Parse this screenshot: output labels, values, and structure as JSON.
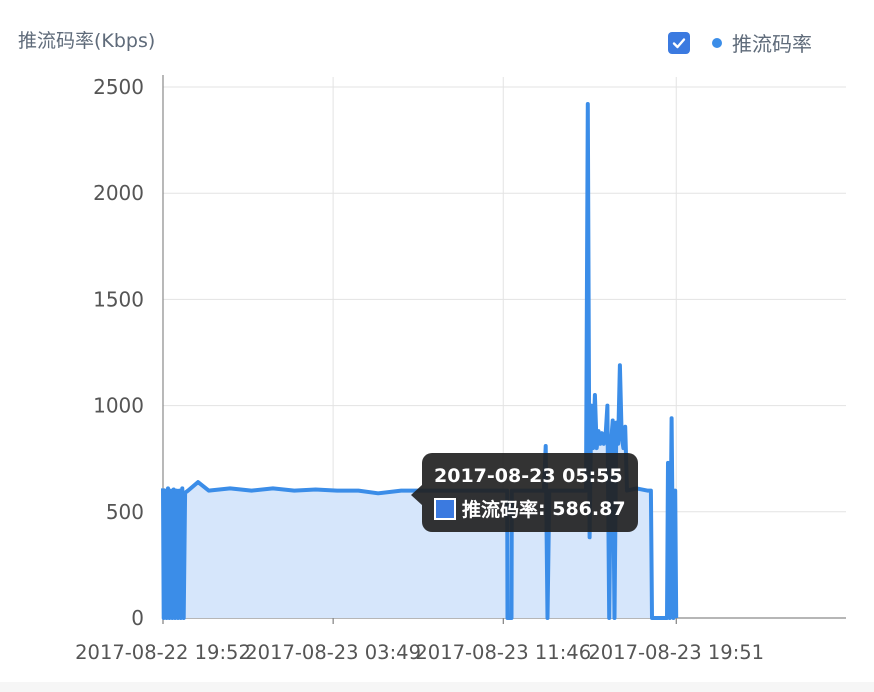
{
  "chart_data": {
    "type": "area",
    "ylabel": "推流码率(Kbps)",
    "ylim": [
      0,
      2500
    ],
    "yticks": [
      "0",
      "500",
      "1000",
      "1500",
      "2000",
      "2500"
    ],
    "xticks": [
      "2017-08-22 19:52",
      "2017-08-23 03:49",
      "2017-08-23 11:46",
      "2017-08-23 19:51"
    ],
    "x_range": [
      "2017-08-22 19:52",
      "2017-08-24 03:47"
    ],
    "grid": true,
    "legend_position": "top-right",
    "series": [
      {
        "name": "推流码率",
        "color": "#3b8de8",
        "points": [
          [
            "2017-08-22 19:52",
            610
          ],
          [
            "2017-08-22 19:54",
            0
          ],
          [
            "2017-08-22 19:58",
            600
          ],
          [
            "2017-08-22 20:02",
            0
          ],
          [
            "2017-08-22 20:06",
            610
          ],
          [
            "2017-08-22 20:10",
            0
          ],
          [
            "2017-08-22 20:14",
            600
          ],
          [
            "2017-08-22 20:18",
            0
          ],
          [
            "2017-08-22 20:22",
            605
          ],
          [
            "2017-08-22 20:26",
            0
          ],
          [
            "2017-08-22 20:30",
            600
          ],
          [
            "2017-08-22 20:34",
            0
          ],
          [
            "2017-08-22 20:38",
            600
          ],
          [
            "2017-08-22 20:42",
            0
          ],
          [
            "2017-08-22 20:46",
            610
          ],
          [
            "2017-08-22 20:50",
            0
          ],
          [
            "2017-08-22 20:54",
            590
          ],
          [
            "2017-08-22 21:02",
            600
          ],
          [
            "2017-08-22 21:30",
            640
          ],
          [
            "2017-08-22 22:00",
            600
          ],
          [
            "2017-08-22 23:00",
            610
          ],
          [
            "2017-08-23 00:00",
            600
          ],
          [
            "2017-08-23 01:00",
            610
          ],
          [
            "2017-08-23 02:00",
            600
          ],
          [
            "2017-08-23 03:00",
            605
          ],
          [
            "2017-08-23 04:00",
            600
          ],
          [
            "2017-08-23 05:00",
            600
          ],
          [
            "2017-08-23 05:55",
            586.87
          ],
          [
            "2017-08-23 07:00",
            600
          ],
          [
            "2017-08-23 09:00",
            600
          ],
          [
            "2017-08-23 11:46",
            600
          ],
          [
            "2017-08-23 11:57",
            600
          ],
          [
            "2017-08-23 11:58",
            0
          ],
          [
            "2017-08-23 12:09",
            0
          ],
          [
            "2017-08-23 12:10",
            600
          ],
          [
            "2017-08-23 13:40",
            600
          ],
          [
            "2017-08-23 13:45",
            810
          ],
          [
            "2017-08-23 13:50",
            0
          ],
          [
            "2017-08-23 13:55",
            600
          ],
          [
            "2017-08-23 15:38",
            600
          ],
          [
            "2017-08-23 15:43",
            2420
          ],
          [
            "2017-08-23 15:48",
            380
          ],
          [
            "2017-08-23 15:53",
            1000
          ],
          [
            "2017-08-23 15:58",
            800
          ],
          [
            "2017-08-23 16:03",
            1050
          ],
          [
            "2017-08-23 16:08",
            800
          ],
          [
            "2017-08-23 16:13",
            880
          ],
          [
            "2017-08-23 16:18",
            820
          ],
          [
            "2017-08-23 16:23",
            870
          ],
          [
            "2017-08-23 16:28",
            820
          ],
          [
            "2017-08-23 16:33",
            860
          ],
          [
            "2017-08-23 16:38",
            1000
          ],
          [
            "2017-08-23 16:43",
            0
          ],
          [
            "2017-08-23 16:48",
            820
          ],
          [
            "2017-08-23 16:53",
            930
          ],
          [
            "2017-08-23 16:58",
            0
          ],
          [
            "2017-08-23 17:03",
            920
          ],
          [
            "2017-08-23 17:08",
            820
          ],
          [
            "2017-08-23 17:13",
            1190
          ],
          [
            "2017-08-23 17:18",
            850
          ],
          [
            "2017-08-23 17:23",
            800
          ],
          [
            "2017-08-23 17:28",
            900
          ],
          [
            "2017-08-23 17:33",
            600
          ],
          [
            "2017-08-23 18:00",
            610
          ],
          [
            "2017-08-23 18:30",
            600
          ],
          [
            "2017-08-23 18:40",
            600
          ],
          [
            "2017-08-23 18:43",
            0
          ],
          [
            "2017-08-23 19:25",
            0
          ],
          [
            "2017-08-23 19:28",
            730
          ],
          [
            "2017-08-23 19:33",
            0
          ],
          [
            "2017-08-23 19:38",
            940
          ],
          [
            "2017-08-23 19:43",
            0
          ],
          [
            "2017-08-23 19:48",
            600
          ],
          [
            "2017-08-23 19:51",
            0
          ]
        ]
      }
    ],
    "tooltip": {
      "time": "2017-08-23 05:55",
      "series_name": "推流码率",
      "value_text": "586.87"
    }
  },
  "legend": {
    "checked": true,
    "label": "推流码率",
    "color": "#3b8de8"
  }
}
